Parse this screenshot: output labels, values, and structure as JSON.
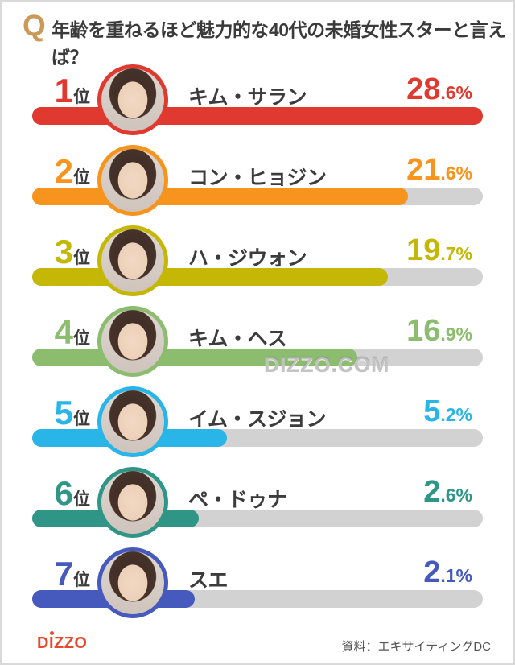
{
  "header": {
    "q_mark": "Q",
    "title": "年齢を重ねるほど魅力的な40代の未婚女性スターと言えば？"
  },
  "watermark": "DIZZO.COM",
  "footer": {
    "logo": "DIZZO",
    "source": "資料：エキサイティングDC"
  },
  "chart_data": {
    "type": "bar",
    "title": "年齢を重ねるほど魅力的な40代の未婚女性スターと言えば？",
    "orientation": "horizontal",
    "unit": "%",
    "categories": [
      "キム・サラン",
      "コン・ヒョジン",
      "ハ・ジウォン",
      "キム・ヘス",
      "イム・スジョン",
      "ペ・ドゥナ",
      "スエ"
    ],
    "values": [
      28.6,
      21.6,
      19.7,
      16.9,
      5.2,
      2.6,
      2.1
    ],
    "track_color": "#d2d2d2",
    "bars": [
      {
        "rank": "1",
        "suffix": "位",
        "name": "キム・サラン",
        "value": 28.6,
        "pct_int": "28",
        "pct_frac": ".6%",
        "color": "#e0392f",
        "bar_fraction": 1.0
      },
      {
        "rank": "2",
        "suffix": "位",
        "name": "コン・ヒョジン",
        "value": 21.6,
        "pct_int": "21",
        "pct_frac": ".6%",
        "color": "#f7941d",
        "bar_fraction": 0.834
      },
      {
        "rank": "3",
        "suffix": "位",
        "name": "ハ・ジウォン",
        "value": 19.7,
        "pct_int": "19",
        "pct_frac": ".7%",
        "color": "#c4b705",
        "bar_fraction": 0.789
      },
      {
        "rank": "4",
        "suffix": "位",
        "name": "キム・ヘス",
        "value": 16.9,
        "pct_int": "16",
        "pct_frac": ".9%",
        "color": "#8cbd6f",
        "bar_fraction": 0.721
      },
      {
        "rank": "5",
        "suffix": "位",
        "name": "イム・スジョン",
        "value": 5.2,
        "pct_int": "5",
        "pct_frac": ".2%",
        "color": "#29b5e8",
        "bar_fraction": 0.432
      },
      {
        "rank": "6",
        "suffix": "位",
        "name": "ペ・ドゥナ",
        "value": 2.6,
        "pct_int": "2",
        "pct_frac": ".6%",
        "color": "#2e9587",
        "bar_fraction": 0.37
      },
      {
        "rank": "7",
        "suffix": "位",
        "name": "スエ",
        "value": 2.1,
        "pct_int": "2",
        "pct_frac": ".1%",
        "color": "#4659bd",
        "bar_fraction": 0.361
      }
    ]
  }
}
